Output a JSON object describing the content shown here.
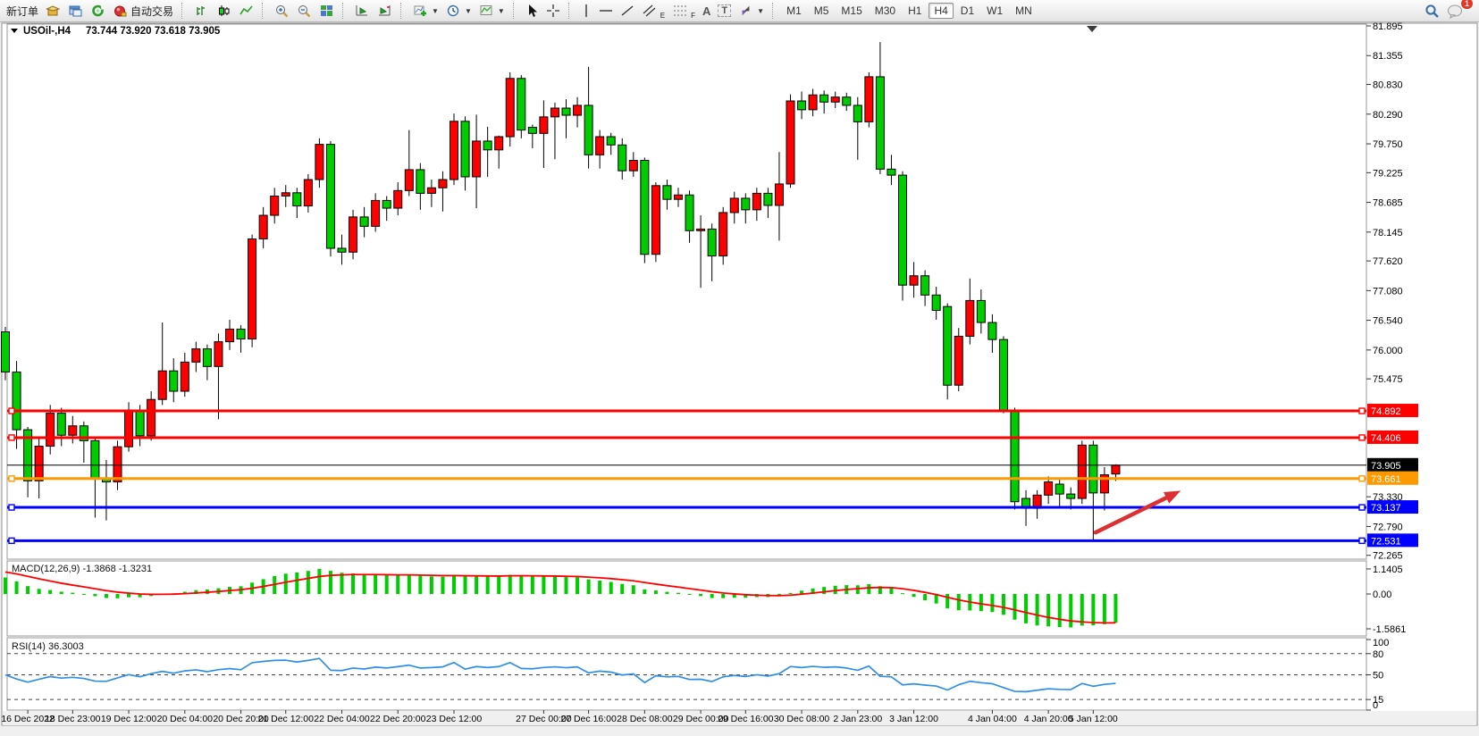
{
  "toolbar": {
    "new_order_label": "新订单",
    "auto_trading_label": "自动交易",
    "timeframes": [
      "M1",
      "M5",
      "M15",
      "M30",
      "H1",
      "H4",
      "D1",
      "W1",
      "MN"
    ],
    "active_timeframe": "H4",
    "notification_badge": "1",
    "glyph_text_tool": "A",
    "glyph_label_tool": "T",
    "glyph_channel_suffix": "E",
    "glyph_fibo_suffix": "F"
  },
  "chart": {
    "symbol_title": "USOil-,H4",
    "ohlc_summary": "73.744 73.920 73.618 73.905"
  },
  "chart_data": {
    "type": "candlestick",
    "symbol": "USOil-",
    "timeframe": "H4",
    "current_bar": {
      "open": 73.744,
      "high": 73.92,
      "low": 73.618,
      "close": 73.905
    },
    "colors": {
      "bull": "#ff0000",
      "bear": "#00cd00",
      "wick": "#000000"
    },
    "ylim": [
      72.265,
      81.895
    ],
    "price_ticks": [
      "81.895",
      "81.355",
      "80.830",
      "80.290",
      "79.750",
      "79.225",
      "78.685",
      "78.145",
      "77.620",
      "77.080",
      "76.540",
      "76.000",
      "75.475",
      "73.330",
      "72.790",
      "72.265"
    ],
    "levels": [
      {
        "price": 74.892,
        "color": "#ff0000",
        "width": 3,
        "current": false
      },
      {
        "price": 74.406,
        "color": "#ff0000",
        "width": 3,
        "current": false
      },
      {
        "price": 73.905,
        "color": "#000000",
        "width": 1,
        "current": true
      },
      {
        "price": 73.661,
        "color": "#ff9900",
        "width": 3,
        "current": false
      },
      {
        "price": 73.137,
        "color": "#0000ff",
        "width": 3,
        "current": false
      },
      {
        "price": 72.531,
        "color": "#0000ff",
        "width": 3,
        "current": false
      }
    ],
    "candles": [
      [
        76.33,
        76.42,
        75.45,
        75.6
      ],
      [
        75.6,
        75.8,
        74.2,
        74.55
      ],
      [
        74.55,
        74.6,
        73.32,
        73.62
      ],
      [
        73.62,
        74.4,
        73.3,
        74.25
      ],
      [
        74.25,
        75.0,
        74.1,
        74.85
      ],
      [
        74.85,
        74.95,
        74.25,
        74.45
      ],
      [
        74.45,
        74.8,
        74.3,
        74.62
      ],
      [
        74.62,
        74.7,
        73.95,
        74.35
      ],
      [
        74.35,
        74.42,
        72.95,
        73.66
      ],
      [
        73.66,
        74.0,
        72.9,
        73.6
      ],
      [
        73.6,
        74.35,
        73.45,
        74.24
      ],
      [
        74.24,
        75.05,
        74.15,
        74.9
      ],
      [
        74.9,
        75.0,
        74.25,
        74.44
      ],
      [
        74.44,
        75.25,
        74.35,
        75.1
      ],
      [
        75.1,
        76.5,
        75.0,
        75.62
      ],
      [
        75.62,
        75.85,
        75.05,
        75.25
      ],
      [
        75.25,
        75.95,
        75.15,
        75.78
      ],
      [
        75.78,
        76.15,
        75.6,
        76.02
      ],
      [
        76.02,
        76.1,
        75.45,
        75.7
      ],
      [
        75.7,
        76.3,
        74.74,
        76.15
      ],
      [
        76.15,
        76.55,
        76.0,
        76.38
      ],
      [
        76.38,
        76.45,
        75.95,
        76.2
      ],
      [
        76.2,
        78.1,
        76.05,
        78.02
      ],
      [
        78.02,
        78.6,
        77.85,
        78.45
      ],
      [
        78.45,
        78.95,
        78.3,
        78.8
      ],
      [
        78.8,
        79.0,
        78.6,
        78.86
      ],
      [
        78.86,
        78.95,
        78.4,
        78.62
      ],
      [
        78.62,
        79.2,
        78.5,
        79.1
      ],
      [
        79.1,
        79.85,
        78.95,
        79.74
      ],
      [
        79.74,
        79.8,
        77.7,
        77.85
      ],
      [
        77.85,
        78.1,
        77.55,
        77.78
      ],
      [
        77.78,
        78.55,
        77.65,
        78.42
      ],
      [
        78.42,
        78.6,
        78.05,
        78.25
      ],
      [
        78.25,
        78.85,
        78.15,
        78.72
      ],
      [
        78.72,
        78.8,
        78.35,
        78.58
      ],
      [
        78.58,
        79.05,
        78.45,
        78.9
      ],
      [
        78.9,
        80.0,
        78.8,
        79.28
      ],
      [
        79.28,
        79.4,
        78.55,
        78.85
      ],
      [
        78.85,
        79.1,
        78.6,
        78.95
      ],
      [
        78.95,
        79.25,
        78.52,
        79.1
      ],
      [
        79.1,
        80.3,
        79.0,
        80.16
      ],
      [
        80.16,
        80.25,
        78.9,
        79.15
      ],
      [
        79.15,
        80.28,
        78.58,
        79.8
      ],
      [
        79.8,
        80.06,
        79.15,
        79.64
      ],
      [
        79.64,
        79.9,
        79.3,
        79.88
      ],
      [
        79.88,
        81.05,
        79.7,
        80.94
      ],
      [
        80.94,
        81.0,
        79.85,
        80.0
      ],
      [
        80.05,
        80.1,
        79.67,
        79.94
      ],
      [
        79.94,
        80.54,
        79.31,
        80.24
      ],
      [
        80.24,
        80.5,
        79.47,
        80.4
      ],
      [
        80.4,
        80.56,
        79.85,
        80.27
      ],
      [
        80.27,
        80.6,
        80.05,
        80.45
      ],
      [
        80.45,
        81.15,
        79.3,
        79.55
      ],
      [
        79.55,
        80.0,
        79.3,
        79.88
      ],
      [
        79.88,
        79.95,
        79.55,
        79.73
      ],
      [
        79.73,
        79.85,
        79.1,
        79.26
      ],
      [
        79.26,
        79.6,
        79.15,
        79.45
      ],
      [
        79.45,
        79.5,
        77.58,
        77.74
      ],
      [
        77.74,
        79.05,
        77.6,
        78.99
      ],
      [
        78.99,
        79.1,
        78.55,
        78.74
      ],
      [
        78.74,
        78.95,
        78.6,
        78.82
      ],
      [
        78.82,
        78.9,
        77.95,
        78.17
      ],
      [
        78.17,
        78.45,
        77.13,
        78.2
      ],
      [
        78.2,
        78.3,
        77.25,
        77.71
      ],
      [
        77.71,
        78.6,
        77.55,
        78.5
      ],
      [
        78.5,
        78.88,
        78.3,
        78.76
      ],
      [
        78.76,
        78.85,
        78.3,
        78.55
      ],
      [
        78.55,
        78.95,
        78.35,
        78.85
      ],
      [
        78.85,
        78.95,
        78.4,
        78.63
      ],
      [
        78.63,
        79.6,
        77.99,
        79.02
      ],
      [
        79.02,
        80.65,
        78.95,
        80.53
      ],
      [
        80.53,
        80.7,
        80.2,
        80.37
      ],
      [
        80.37,
        80.75,
        80.25,
        80.64
      ],
      [
        80.64,
        80.72,
        80.3,
        80.51
      ],
      [
        80.51,
        80.7,
        80.4,
        80.6
      ],
      [
        80.6,
        80.68,
        80.35,
        80.45
      ],
      [
        80.45,
        80.6,
        79.46,
        80.15
      ],
      [
        80.15,
        81.05,
        80.05,
        80.97
      ],
      [
        80.97,
        81.6,
        79.2,
        79.29
      ],
      [
        79.29,
        79.55,
        79.0,
        79.18
      ],
      [
        79.18,
        79.25,
        76.9,
        77.18
      ],
      [
        77.18,
        77.6,
        76.95,
        77.35
      ],
      [
        77.35,
        77.45,
        76.8,
        77.0
      ],
      [
        77.0,
        77.15,
        76.55,
        76.72
      ],
      [
        76.79,
        76.85,
        75.1,
        75.36
      ],
      [
        75.36,
        76.4,
        75.25,
        76.25
      ],
      [
        76.25,
        77.3,
        76.1,
        76.9
      ],
      [
        76.9,
        77.1,
        76.3,
        76.5
      ],
      [
        76.5,
        76.65,
        75.95,
        76.19
      ],
      [
        76.19,
        76.25,
        74.85,
        74.89
      ],
      [
        74.89,
        74.95,
        73.1,
        73.24
      ],
      [
        73.3,
        73.45,
        72.8,
        73.12
      ],
      [
        73.12,
        73.45,
        72.93,
        73.36
      ],
      [
        73.36,
        73.7,
        73.2,
        73.6
      ],
      [
        73.56,
        73.65,
        73.15,
        73.38
      ],
      [
        73.38,
        73.5,
        73.1,
        73.3
      ],
      [
        73.3,
        74.35,
        73.2,
        74.27
      ],
      [
        74.27,
        74.35,
        72.55,
        73.4
      ],
      [
        73.4,
        73.87,
        73.08,
        73.73
      ],
      [
        73.744,
        73.92,
        73.618,
        73.905
      ]
    ],
    "time_labels": [
      {
        "text": "16 Dec 2022",
        "bar": 2
      },
      {
        "text": "18 Dec 23:00",
        "bar": 6
      },
      {
        "text": "19 Dec 12:00",
        "bar": 11
      },
      {
        "text": "20 Dec 04:00",
        "bar": 16
      },
      {
        "text": "20 Dec 20:00",
        "bar": 21
      },
      {
        "text": "21 Dec 12:00",
        "bar": 25
      },
      {
        "text": "22 Dec 04:00",
        "bar": 30
      },
      {
        "text": "22 Dec 20:00",
        "bar": 35
      },
      {
        "text": "23 Dec 12:00",
        "bar": 40
      },
      {
        "text": "27 Dec 00:00",
        "bar": 48
      },
      {
        "text": "27 Dec 16:00",
        "bar": 52
      },
      {
        "text": "28 Dec 08:00",
        "bar": 57
      },
      {
        "text": "29 Dec 00:00",
        "bar": 62
      },
      {
        "text": "29 Dec 16:00",
        "bar": 66
      },
      {
        "text": "30 Dec 08:00",
        "bar": 71
      },
      {
        "text": "2 Jan 23:00",
        "bar": 76
      },
      {
        "text": "3 Jan 12:00",
        "bar": 81
      },
      {
        "text": "4 Jan 04:00",
        "bar": 88
      },
      {
        "text": "4 Jan 20:00",
        "bar": 93
      },
      {
        "text": "5 Jan 12:00",
        "bar": 97
      }
    ],
    "indicators": {
      "macd": {
        "label": "MACD(12,26,9) -1.3868 -1.3231",
        "params": [
          12,
          26,
          9
        ],
        "value": -1.3868,
        "signal_value": -1.3231,
        "axis_ticks": [
          {
            "label": "1.1405",
            "value": 1.1405
          },
          {
            "label": "0.00",
            "value": 0
          },
          {
            "label": "-1.5861",
            "value": -1.5861
          }
        ],
        "hist_color": "#00cd00",
        "signal_color": "#ff0000"
      },
      "rsi": {
        "label": "RSI(14) 36.3003",
        "period": 14,
        "value": 36.3003,
        "axis_ticks": [
          {
            "label": "100",
            "value": 100
          },
          {
            "label": "80",
            "value": 80
          },
          {
            "label": "50",
            "value": 50
          },
          {
            "label": "15",
            "value": 15
          },
          {
            "label": "0",
            "value": 0
          }
        ],
        "dashed_levels": [
          80,
          50,
          15
        ],
        "line_color": "#2f8fe8"
      }
    },
    "annotations": [
      {
        "type": "arrow",
        "color": "#dc3032",
        "from": {
          "bar": 97.2,
          "price": 72.68
        },
        "to": {
          "bar": 104.8,
          "price": 73.44
        }
      }
    ]
  }
}
